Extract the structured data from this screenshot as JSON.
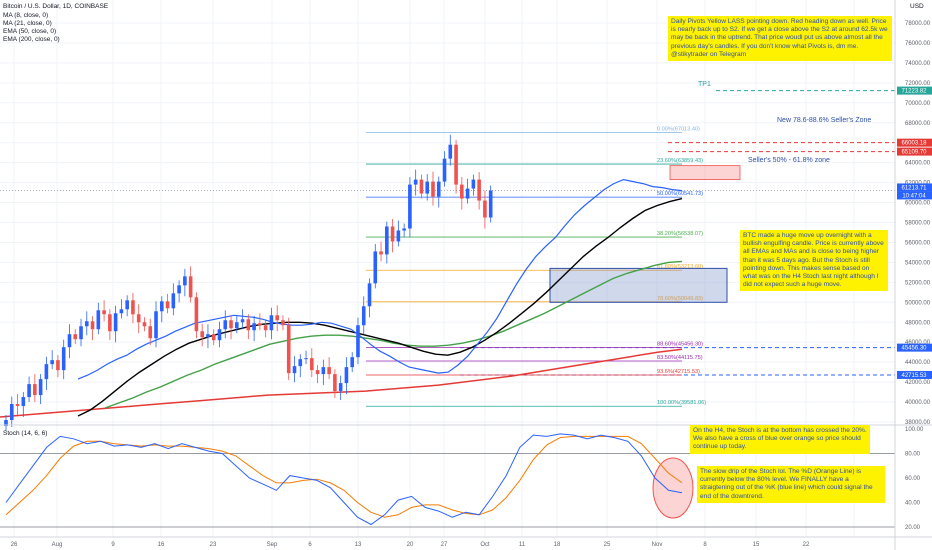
{
  "header": {
    "title": "Bitcoin / U.S. Dollar, 1D, COINBASE",
    "indicators": [
      "MA (8, close, 0)",
      "MA (21, close, 0)",
      "EMA (50, close, 0)",
      "EMA (200, close, 0)"
    ],
    "stoch_label": "Stoch (14, 6, 6)",
    "currency": "USD"
  },
  "price_axis": {
    "ticks": [
      "78000.00",
      "76000.00",
      "74000.00",
      "72000.00",
      "70000.00",
      "68000.00",
      "66000.00",
      "64000.00",
      "62000.00",
      "60000.00",
      "58000.00",
      "56000.00",
      "54000.00",
      "52000.00",
      "50000.00",
      "48000.00",
      "46000.00",
      "44000.00",
      "42000.00",
      "40000.00",
      "38000.00"
    ],
    "badges": [
      {
        "text": "71223.82",
        "color": "#26a69a"
      },
      {
        "text": "66003.18",
        "color": "#e53935"
      },
      {
        "text": "65109.70",
        "color": "#e53935"
      },
      {
        "text": "61213.71",
        "color": "#2962ff"
      },
      {
        "text": "10:47:04",
        "color": "#2962ff"
      },
      {
        "text": "45456.30",
        "color": "#2962ff"
      },
      {
        "text": "42715.53",
        "color": "#2962ff"
      }
    ]
  },
  "stoch_axis": {
    "ticks": [
      "100.00",
      "80.00",
      "60.00",
      "40.00",
      "20.00"
    ]
  },
  "time_axis": {
    "ticks": [
      "26",
      "Aug",
      "9",
      "16",
      "23",
      "Sep",
      "6",
      "13",
      "20",
      "27",
      "Oct",
      "11",
      "18",
      "25",
      "Nov",
      "8",
      "15",
      "22"
    ]
  },
  "fib_levels": [
    {
      "label": "0.00%(67013.40)",
      "price": 67013.4
    },
    {
      "label": "23.60%(63859.43)",
      "price": 63859.43
    },
    {
      "label": "38.20%(56538.07)",
      "price": 56538.07
    },
    {
      "label": "50.00%(60541.73)",
      "price": 60541.73
    },
    {
      "label": "61.80%(53213.60)",
      "price": 53213.6
    },
    {
      "label": "78.60%(50049.83)",
      "price": 50049.83
    },
    {
      "label": "88.60%(45456.30)",
      "price": 45456.3
    },
    {
      "label": "83.50%(44115.75)",
      "price": 44115.75
    },
    {
      "label": "93.6%(42715.53)",
      "price": 42715.53
    },
    {
      "label": "100.00%(39581.06)",
      "price": 39581.06
    }
  ],
  "chart_labels": {
    "tp1": "TP1",
    "sellers_zone_top": "New 78.6-88.6% Seller's Zone",
    "sellers_zone_mid": "Seller's 50% - 61.8% zone"
  },
  "notes": {
    "top": "Daily Pivots Yellow LASS pointing down. Red heading down as well. Price is nearly back up to S2. If we get a close above the S2 at around 62.5k we may be back in the uptrend. That price woudl put us above almost all the previous day's candles. If you don't know what Pivots is, dm me. @stikytrader on Telegram",
    "middle": "BTC made a huge move up overnight with a bullish engulfing candle. Price is currently above all EMAs and MAs and is close to being higher than it was 5 days ago. But the Stoch is still pointing down. This makes sense based on what was on the H4 Stoch last night although I did not expect such a huge move.",
    "h4": "On the H4, the Stoch is at the bottom has crossed the 20%. We also have a cross of blue over orange so price should continue up today.",
    "stoch": "The slow drip of the Stoch lol. The %D (Orange Line) is currently below the 80% level. We FINALLY have a straigtening out of the %K (blue line) which could signal the end of the downtrend."
  },
  "colors": {
    "up": "#2962ff",
    "down": "#ef5350",
    "ma8": "#2962ff",
    "ma21": "#000000",
    "ema50": "#43a047",
    "ema200": "#e53935",
    "note_bg": "#fff200",
    "note_text": "#2d4fa8"
  },
  "chart_data": {
    "type": "candlestick",
    "title": "Bitcoin / U.S. Dollar, 1D, COINBASE",
    "y_range": [
      38000,
      78000
    ],
    "stoch_range": [
      20,
      100
    ],
    "candles_close": [
      38200,
      39800,
      39600,
      40500,
      41800,
      40700,
      42300,
      43800,
      44200,
      43200,
      45500,
      46800,
      46300,
      47600,
      48100,
      47300,
      49200,
      48800,
      47100,
      48900,
      49300,
      50200,
      48800,
      48000,
      47600,
      46400,
      49100,
      50100,
      49400,
      50900,
      51700,
      52600,
      50500,
      47100,
      46500,
      46800,
      46200,
      47300,
      48200,
      47400,
      48000,
      48300,
      47200,
      47900,
      47700,
      47200,
      48700,
      48200,
      47700,
      42900,
      43600,
      44300,
      44400,
      43200,
      42800,
      43500,
      42800,
      41100,
      41900,
      43500,
      44500,
      47700,
      49600,
      51900,
      55100,
      54800,
      57600,
      56100,
      57200,
      57400,
      61800,
      62300,
      60900,
      62100,
      60600,
      62100,
      64400,
      65800,
      61800,
      60400,
      61400,
      62300,
      60200,
      58500,
      61200
    ],
    "ma8": [
      42300,
      42700,
      43200,
      43800,
      44300,
      44700,
      45300,
      45800,
      46200,
      46600,
      47100,
      47500,
      47900,
      48100,
      48300,
      48500,
      48700,
      48600,
      48500,
      48300,
      48000,
      47800,
      47700,
      47700,
      47800,
      48000,
      47900,
      47600,
      47300,
      46600,
      45800,
      45100,
      44600,
      44000,
      43500,
      43300,
      43100,
      42900,
      43000,
      43700,
      44600,
      45800,
      47000,
      48400,
      50100,
      51800,
      53300,
      54600,
      55600,
      56500,
      57700,
      58800,
      59700,
      60500,
      61300,
      61900,
      62300,
      62100,
      61900,
      61600,
      61500,
      61300,
      61200
    ],
    "ma21": [
      38600,
      39200,
      40100,
      41100,
      42100,
      43000,
      43800,
      44600,
      45300,
      45900,
      46300,
      46700,
      47000,
      47300,
      47600,
      47800,
      47900,
      48000,
      48000,
      47900,
      47700,
      47400,
      47100,
      46800,
      46500,
      46200,
      45900,
      45500,
      45100,
      44800,
      44700,
      45000,
      45500,
      46200,
      47000,
      47900,
      48900,
      49900,
      51000,
      52200,
      53400,
      54600,
      55600,
      56500,
      57500,
      58400,
      59200,
      59700,
      60100,
      60400
    ],
    "ema50": [
      39400,
      39900,
      40400,
      41000,
      41500,
      42100,
      42700,
      43200,
      43800,
      44300,
      44800,
      45300,
      45800,
      46100,
      46400,
      46600,
      46700,
      46700,
      46600,
      46400,
      46200,
      45900,
      45700,
      45600,
      45600,
      45700,
      45900,
      46200,
      46600,
      47100,
      47700,
      48300,
      48900,
      49600,
      50300,
      51000,
      51700,
      52400,
      52900,
      53300,
      53700,
      54000,
      54100
    ],
    "ema200": [
      38500,
      38700,
      38900,
      39100,
      39300,
      39500,
      39700,
      39900,
      40100,
      40300,
      40500,
      40700,
      40800,
      40900,
      41000,
      41100,
      41300,
      41500,
      41700,
      42000,
      42300,
      42600,
      43000,
      43400,
      43800,
      44200,
      44600,
      45000,
      45300
    ],
    "stoch_k": [
      40,
      55,
      70,
      85,
      94,
      92,
      88,
      90,
      86,
      87,
      85,
      88,
      84,
      88,
      85,
      82,
      80,
      70,
      60,
      55,
      50,
      62,
      60,
      58,
      52,
      40,
      28,
      22,
      30,
      42,
      45,
      36,
      33,
      28,
      32,
      30,
      45,
      62,
      85,
      95,
      94,
      96,
      95,
      92,
      95,
      93,
      90,
      78,
      60,
      50,
      48
    ],
    "stoch_d": [
      30,
      40,
      50,
      62,
      76,
      86,
      90,
      90,
      88,
      87,
      86,
      87,
      86,
      86,
      85,
      84,
      82,
      78,
      70,
      62,
      56,
      56,
      58,
      59,
      56,
      50,
      40,
      32,
      28,
      30,
      36,
      38,
      38,
      34,
      31,
      30,
      34,
      44,
      58,
      75,
      87,
      93,
      94,
      94,
      94,
      94,
      94,
      88,
      76,
      64,
      56
    ]
  }
}
